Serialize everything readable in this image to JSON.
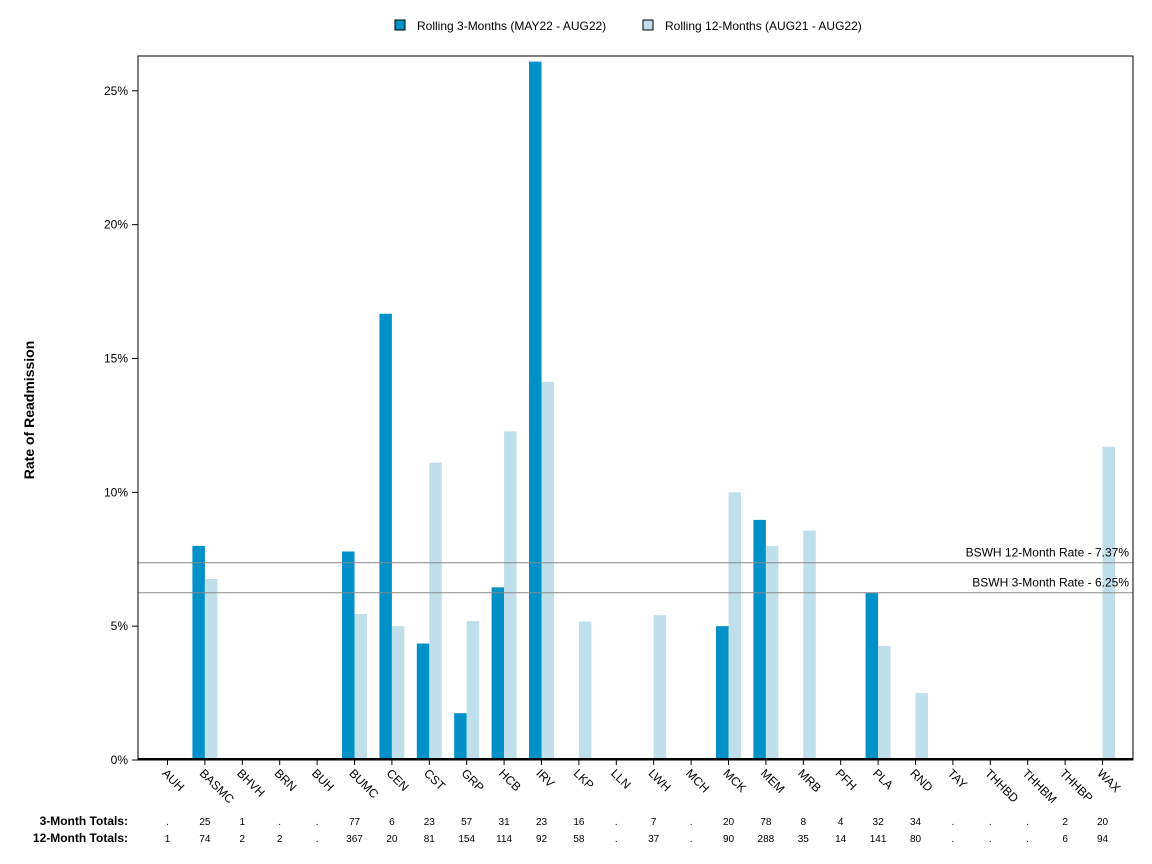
{
  "chart_data": {
    "type": "bar",
    "ylabel": "Rate of Readmission",
    "xlabel": "",
    "ylim": [
      0,
      26.3
    ],
    "yticks": [
      0,
      5,
      10,
      15,
      20,
      25
    ],
    "ytick_labels": [
      "0%",
      "5%",
      "10%",
      "15%",
      "20%",
      "25%"
    ],
    "legend_position": "top-center",
    "grid": false,
    "categories": [
      "AUH",
      "BASMC",
      "BHVH",
      "BRN",
      "BUH",
      "BUMC",
      "CEN",
      "CST",
      "GRP",
      "HCB",
      "IRV",
      "LKP",
      "LLN",
      "LWH",
      "MCH",
      "MCK",
      "MEM",
      "MRB",
      "PFH",
      "PLA",
      "RND",
      "TAY",
      "THHBD",
      "THHBM",
      "THHBP",
      "WAX"
    ],
    "series": [
      {
        "name": "Rolling 3-Months (MAY22 - AUG22)",
        "color": "#0091c8",
        "values": [
          0,
          8.0,
          0,
          0,
          0,
          7.79,
          16.67,
          4.35,
          1.75,
          6.45,
          26.09,
          0,
          0,
          0,
          0,
          5.0,
          8.97,
          0,
          0,
          6.25,
          0,
          0,
          0,
          0,
          0,
          0
        ]
      },
      {
        "name": "Rolling 12-Months (AUG21 - AUG22)",
        "color": "#bfdfea",
        "values": [
          0,
          6.76,
          0,
          0,
          0,
          5.45,
          5.0,
          11.11,
          5.19,
          12.28,
          14.13,
          5.17,
          0,
          5.41,
          0,
          10.0,
          7.99,
          8.57,
          0,
          4.26,
          2.5,
          0,
          0,
          0,
          0,
          11.7
        ]
      }
    ],
    "reference_lines": [
      {
        "label": "BSWH 12-Month Rate - 7.37%",
        "value": 7.37
      },
      {
        "label": "BSWH  3-Month Rate - 6.25%",
        "value": 6.25
      }
    ],
    "totals": {
      "three_month_label": "3-Month Totals:",
      "twelve_month_label": "12-Month Totals:",
      "three_month": [
        ".",
        "25",
        "1",
        ".",
        ".",
        "77",
        "6",
        "23",
        "57",
        "31",
        "23",
        "16",
        ".",
        "7",
        ".",
        "20",
        "78",
        "8",
        "4",
        "32",
        "34",
        ".",
        ".",
        ".",
        "2",
        "20"
      ],
      "twelve_month": [
        "1",
        "74",
        "2",
        "2",
        ".",
        "367",
        "20",
        "81",
        "154",
        "114",
        "92",
        "58",
        ".",
        "37",
        ".",
        "90",
        "288",
        "35",
        "14",
        "141",
        "80",
        ".",
        ".",
        ".",
        "6",
        "94"
      ]
    }
  }
}
